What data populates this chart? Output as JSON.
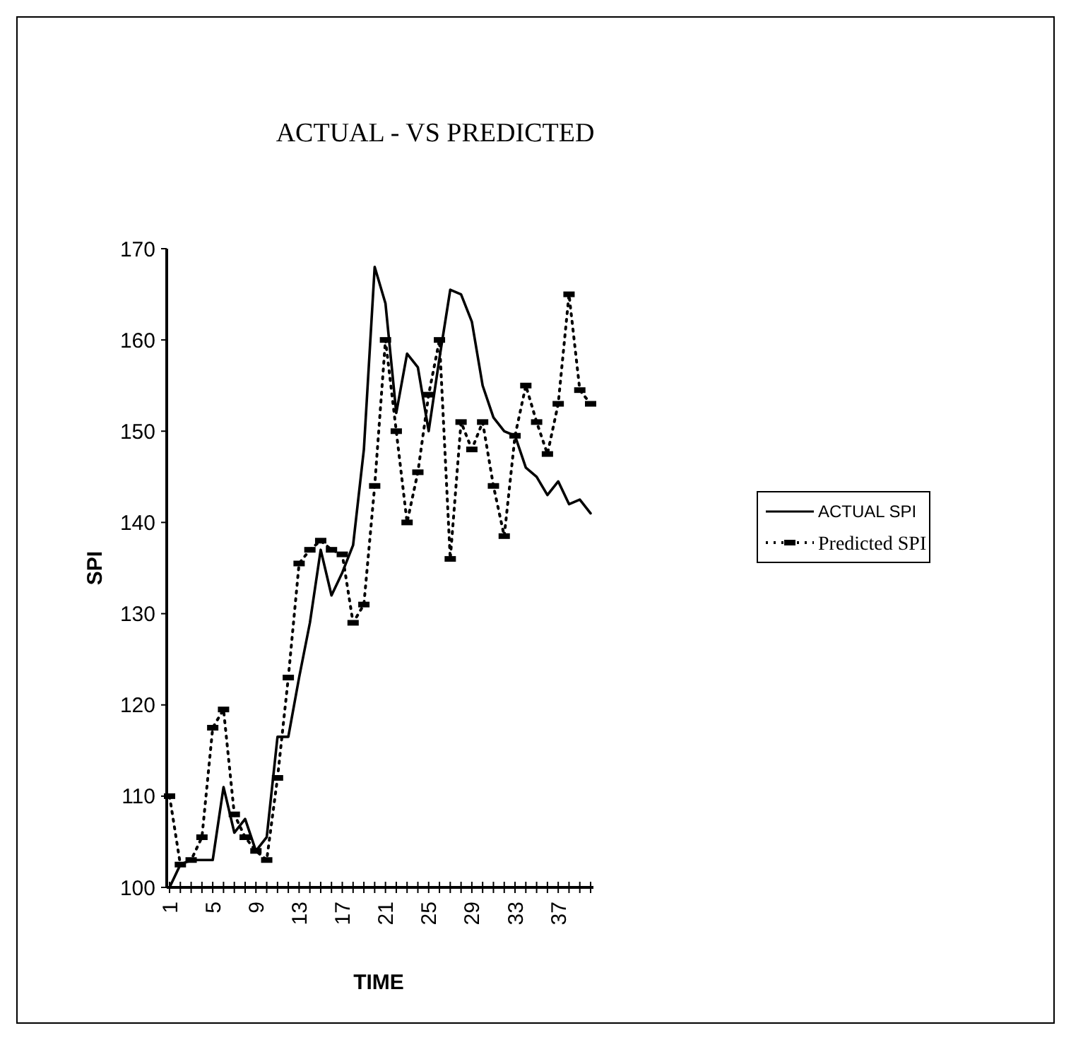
{
  "chart_data": {
    "type": "line",
    "title": "ACTUAL - VS PREDICTED",
    "xlabel": "TIME",
    "ylabel": "SPI",
    "categories": [
      "1",
      null,
      null,
      null,
      "5",
      null,
      null,
      null,
      "9",
      null,
      null,
      null,
      "13",
      null,
      null,
      null,
      "17",
      null,
      null,
      null,
      "21",
      null,
      null,
      null,
      "25",
      null,
      null,
      null,
      "29",
      null,
      null,
      null,
      "33",
      null,
      null,
      null,
      "37",
      null,
      null,
      null
    ],
    "series": [
      {
        "name": "ACTUAL SPI",
        "color": "#000000",
        "line_style": "solid",
        "marker": "none",
        "values": [
          100,
          102.5,
          103,
          103,
          103,
          111,
          106,
          107.5,
          104,
          105.5,
          116.5,
          116.5,
          123,
          129,
          137,
          132,
          134.5,
          137.5,
          148,
          168,
          164,
          152,
          158.5,
          157,
          150,
          158,
          165.5,
          165,
          162,
          155,
          151.5,
          150,
          149.5,
          146,
          145,
          143,
          144.5,
          142,
          142.5,
          141
        ]
      },
      {
        "name": "Predicted SPI",
        "color": "#000000",
        "line_style": "dotted",
        "marker": "square",
        "values": [
          110,
          102.5,
          103,
          105.5,
          117.5,
          119.5,
          108,
          105.5,
          104,
          103,
          112,
          123,
          135.5,
          137,
          138,
          137,
          136.5,
          129,
          131,
          144,
          160,
          150,
          140,
          145.5,
          154,
          160,
          136,
          151,
          148,
          151,
          144,
          138.5,
          149.5,
          155,
          151,
          147.5,
          153,
          165,
          154.5,
          153
        ]
      }
    ],
    "ylim": [
      100,
      170
    ],
    "yticks": [
      100,
      110,
      120,
      130,
      140,
      150,
      160,
      170
    ],
    "grid": false,
    "legend": "right"
  }
}
